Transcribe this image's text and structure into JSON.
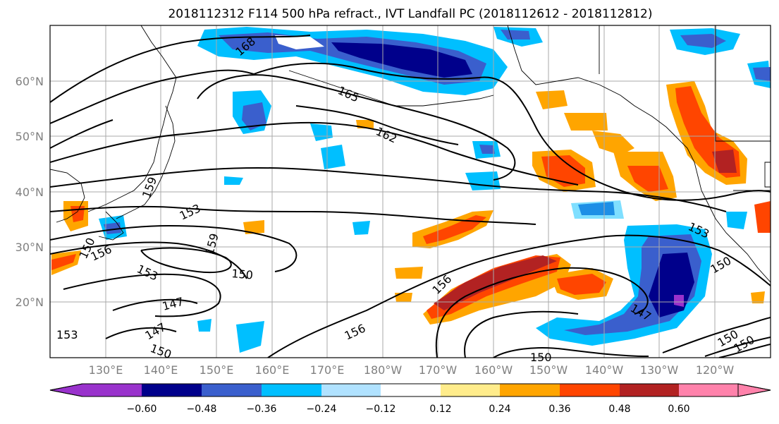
{
  "title": "2018112312 F114 500 hPa refract., IVT Landfall PC (2018112612 - 2018112812)",
  "map": {
    "lat_ticks": [
      "60°N",
      "50°N",
      "40°N",
      "30°N",
      "20°N"
    ],
    "lon_ticks": [
      "130°E",
      "140°E",
      "150°E",
      "160°E",
      "170°E",
      "180°W",
      "170°W",
      "160°W",
      "150°W",
      "140°W",
      "130°W",
      "120°W"
    ],
    "contour_labels": [
      "168",
      "165",
      "162",
      "159",
      "153",
      "150",
      "156",
      "153",
      "159",
      "150",
      "147",
      "147",
      "150",
      "153",
      "156",
      "156",
      "150",
      "153",
      "150",
      "147",
      "150",
      "150"
    ],
    "fill_colors": {
      "strong_negative": "#00008b",
      "negative": "#3a5fcd",
      "weak_negative": "#00bfff",
      "faint_negative": "#b0e2ff",
      "faint_positive": "#ffec8b",
      "weak_positive": "#ffa500",
      "positive": "#ff4500",
      "strong_positive": "#b22222"
    }
  },
  "colorbar": {
    "ticks": [
      "−0.60",
      "−0.48",
      "−0.36",
      "−0.24",
      "−0.12",
      "0.12",
      "0.24",
      "0.36",
      "0.48",
      "0.60"
    ],
    "colors": [
      "#9932cc",
      "#00008b",
      "#3a5fcd",
      "#00bfff",
      "#b0e2ff",
      "#ffffff",
      "#ffec8b",
      "#ffa500",
      "#ff4500",
      "#b22222",
      "#ff82ab"
    ]
  }
}
